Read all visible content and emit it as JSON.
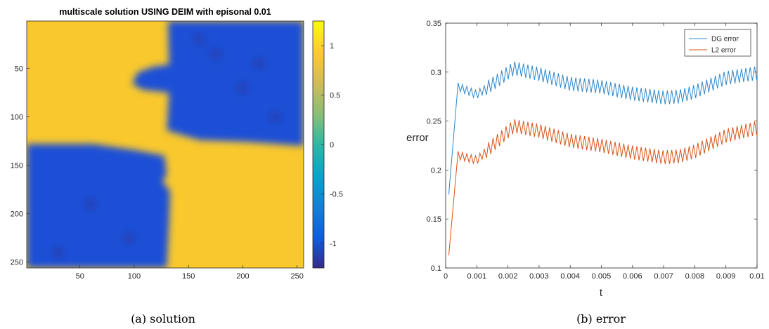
{
  "colors": {
    "high": "#F9C82D",
    "low": "#1B4FD6",
    "deep_low": "#352A87",
    "dg_error": "#2E86C9",
    "l2_error": "#D95319",
    "axis": "#262626",
    "background": "#ffffff"
  },
  "chart_data": [
    {
      "type": "heatmap",
      "title": "multiscale solution USING DEIM with episonal 0.01",
      "xlim": [
        1,
        256
      ],
      "ylim": [
        1,
        256
      ],
      "y_reversed": true,
      "xticks": [
        "50",
        "100",
        "150",
        "200",
        "250"
      ],
      "yticks": [
        "50",
        "100",
        "150",
        "200",
        "250"
      ],
      "grid": false,
      "colorbar": {
        "range": [
          -1.25,
          1.25
        ],
        "ticks": [
          "1",
          "0.5",
          "0",
          "-0.5",
          "-1"
        ],
        "colormap": "parula"
      },
      "value_high": 0.95,
      "value_low": -0.95,
      "regions_low": [
        {
          "x": [
            100,
            256
          ],
          "y": [
            1,
            130
          ],
          "note": "top-right low region"
        },
        {
          "x": [
            1,
            130
          ],
          "y": [
            128,
            256
          ],
          "note": "bottom-left low region"
        }
      ],
      "caption": "(a) solution"
    },
    {
      "type": "line",
      "xlabel": "t",
      "ylabel": "error",
      "xlim": [
        0,
        0.01
      ],
      "ylim": [
        0.1,
        0.35
      ],
      "xticks": [
        "0",
        "0.001",
        "0.002",
        "0.003",
        "0.004",
        "0.005",
        "0.006",
        "0.007",
        "0.008",
        "0.009",
        "0.01"
      ],
      "yticks": [
        "0.1",
        "0.15",
        "0.2",
        "0.25",
        "0.3",
        "0.35"
      ],
      "grid": false,
      "legend": "top-right",
      "oscillation_amplitude": 0.007,
      "oscillation_period": 0.00014,
      "series": [
        {
          "name": "DG error",
          "color": "#2E86C9",
          "start": [
            0.0001,
            0.175
          ],
          "x": [
            0.0004,
            0.001,
            0.0016,
            0.0022,
            0.003,
            0.004,
            0.005,
            0.006,
            0.007,
            0.0075,
            0.008,
            0.009,
            0.01
          ],
          "y": [
            0.285,
            0.277,
            0.29,
            0.304,
            0.298,
            0.288,
            0.285,
            0.278,
            0.274,
            0.275,
            0.28,
            0.294,
            0.299
          ]
        },
        {
          "name": "L2 error",
          "color": "#D95319",
          "start": [
            0.0001,
            0.113
          ],
          "x": [
            0.0004,
            0.001,
            0.0016,
            0.0022,
            0.003,
            0.004,
            0.005,
            0.006,
            0.007,
            0.0075,
            0.008,
            0.009,
            0.01
          ],
          "y": [
            0.215,
            0.21,
            0.228,
            0.245,
            0.24,
            0.23,
            0.225,
            0.218,
            0.213,
            0.214,
            0.219,
            0.235,
            0.243
          ]
        }
      ],
      "caption": "(b) error"
    }
  ]
}
